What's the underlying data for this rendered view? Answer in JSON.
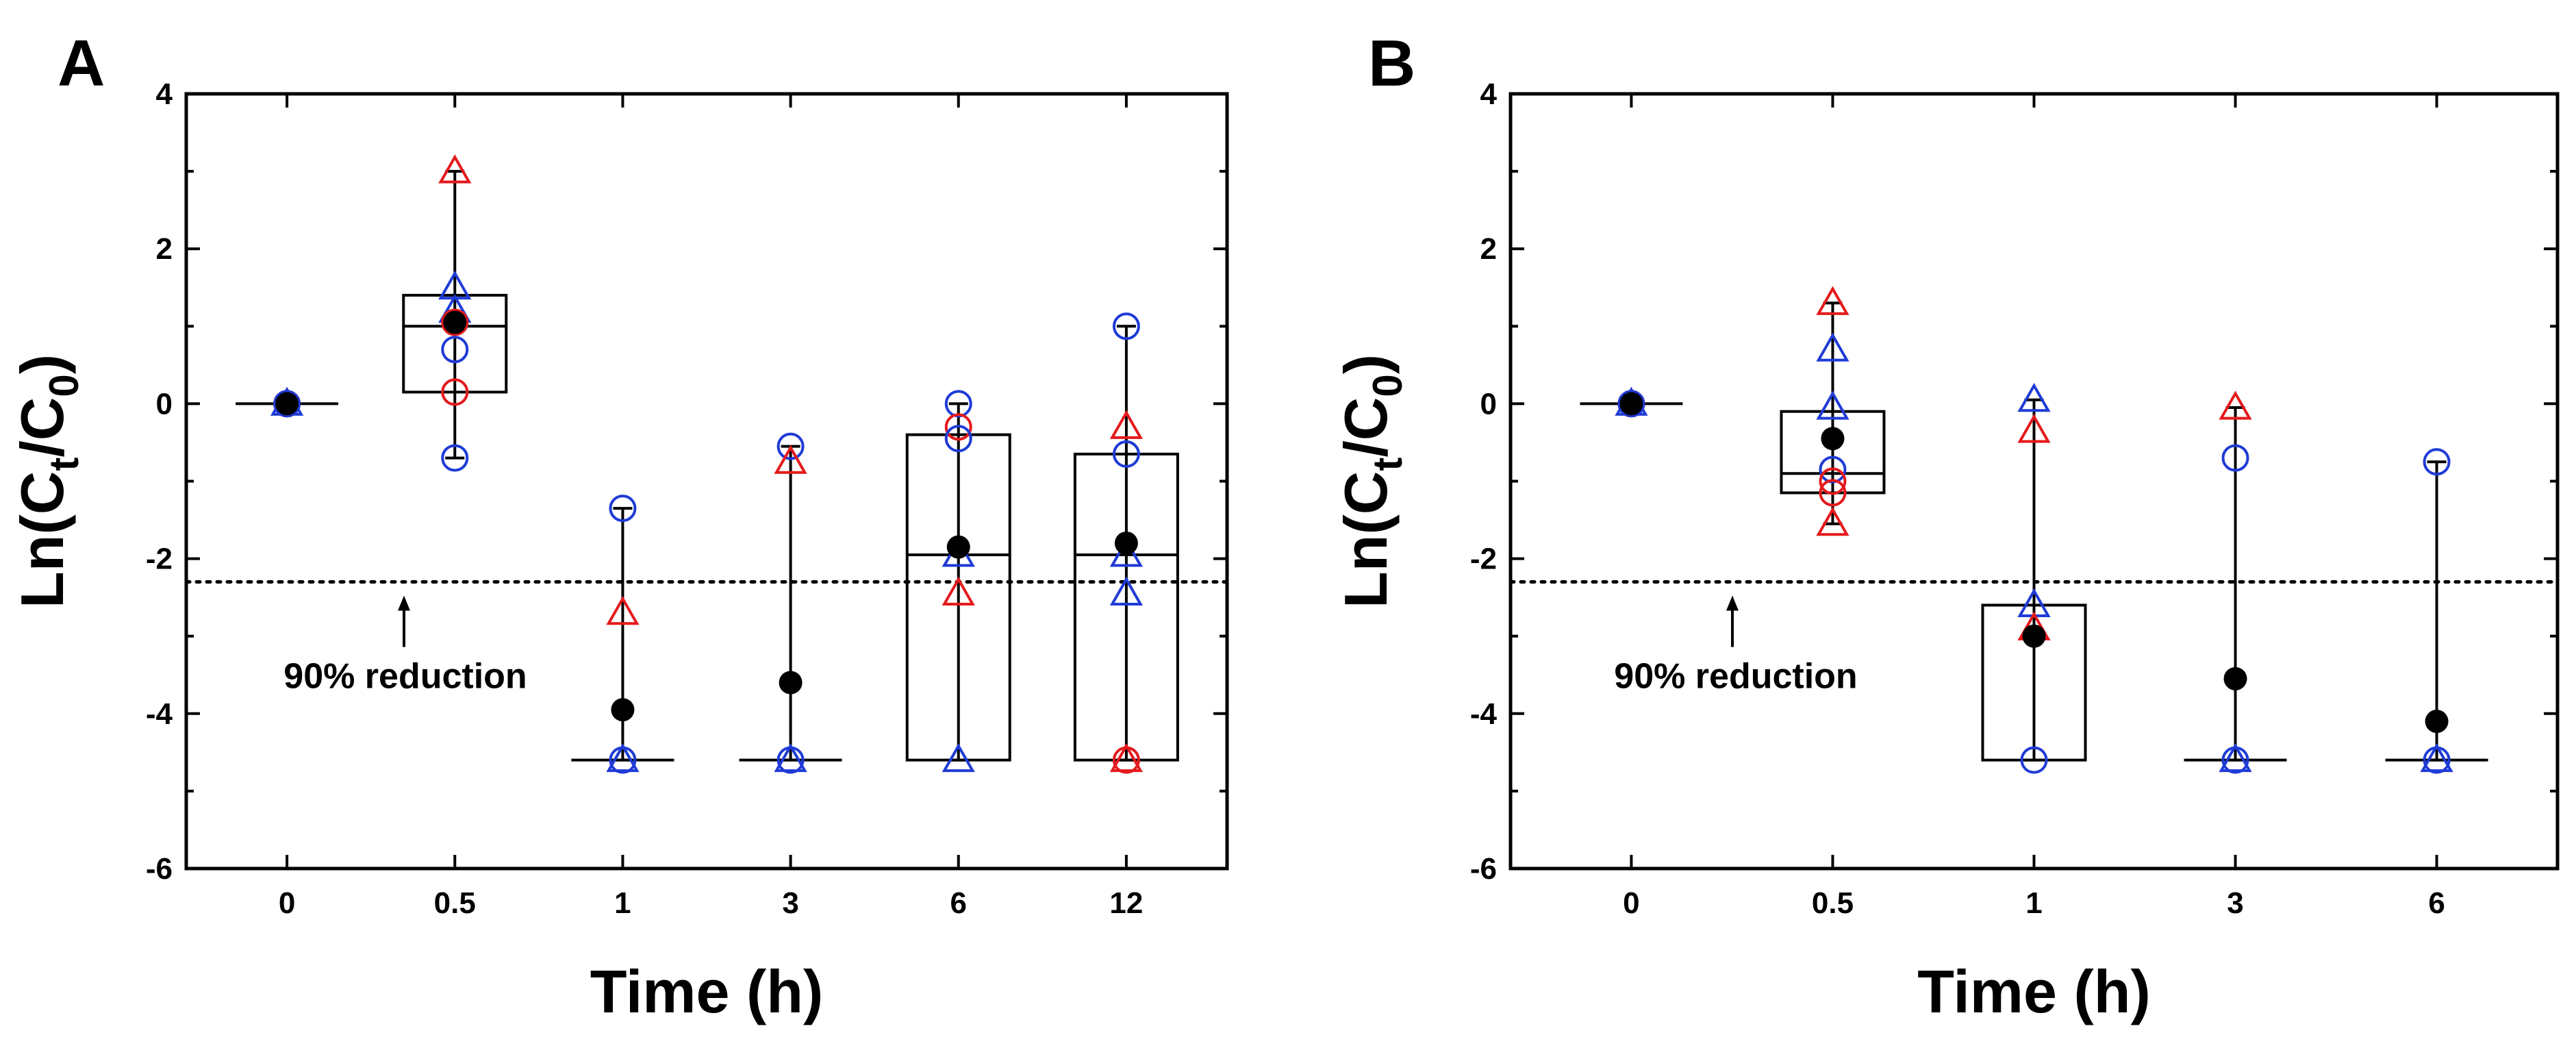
{
  "colors": {
    "axis": "#000000",
    "mean": "#000000",
    "series_red": "#e41a1c",
    "series_blue": "#1f3bd6",
    "box": "#000000"
  },
  "chart_data": [
    {
      "panel_label": "A",
      "type": "box",
      "xlabel": "Time (h)",
      "ylabel": "Ln(Ct/C0)",
      "ylabel_parts": {
        "base": "Ln(C",
        "sub1": "t",
        "mid": "/C",
        "sub2": "0",
        "end": ")"
      },
      "ylim": [
        -6,
        4
      ],
      "yticks": [
        "-6",
        "-4",
        "-2",
        "0",
        "2",
        "4"
      ],
      "categories": [
        "0",
        "0.5",
        "1",
        "3",
        "6",
        "12"
      ],
      "threshold": {
        "value": -2.3,
        "label": "90% reduction",
        "style": "dotted"
      },
      "boxes": [
        {
          "category": "0",
          "min": 0,
          "q1": 0,
          "median": 0,
          "q3": 0,
          "max": 0,
          "mean": 0
        },
        {
          "category": "0.5",
          "min": -0.7,
          "q1": 0.15,
          "median": 1.0,
          "q3": 1.4,
          "max": 3.0,
          "mean": 1.05
        },
        {
          "category": "1",
          "min": -4.6,
          "q1": -4.6,
          "median": -4.6,
          "q3": -4.6,
          "max": -1.35,
          "mean": -3.95
        },
        {
          "category": "3",
          "min": -4.6,
          "q1": -4.6,
          "median": -4.6,
          "q3": -4.6,
          "max": -0.55,
          "mean": -3.6
        },
        {
          "category": "6",
          "min": -4.6,
          "q1": -4.6,
          "median": -1.95,
          "q3": -0.4,
          "max": 0.0,
          "mean": -1.85
        },
        {
          "category": "12",
          "min": -4.6,
          "q1": -4.6,
          "median": -1.95,
          "q3": -0.65,
          "max": 1.0,
          "mean": -1.8
        }
      ],
      "points": [
        {
          "category": "0",
          "value": 0,
          "series": "red",
          "marker": "circle"
        },
        {
          "category": "0",
          "value": 0,
          "series": "blue",
          "marker": "circle"
        },
        {
          "category": "0",
          "value": 0,
          "series": "blue",
          "marker": "triangle"
        },
        {
          "category": "0.5",
          "value": 3.0,
          "series": "red",
          "marker": "triangle"
        },
        {
          "category": "0.5",
          "value": 1.5,
          "series": "blue",
          "marker": "triangle"
        },
        {
          "category": "0.5",
          "value": 1.2,
          "series": "blue",
          "marker": "triangle"
        },
        {
          "category": "0.5",
          "value": 1.05,
          "series": "red",
          "marker": "circle"
        },
        {
          "category": "0.5",
          "value": 0.7,
          "series": "blue",
          "marker": "circle"
        },
        {
          "category": "0.5",
          "value": 0.15,
          "series": "red",
          "marker": "circle"
        },
        {
          "category": "0.5",
          "value": -0.7,
          "series": "blue",
          "marker": "circle"
        },
        {
          "category": "1",
          "value": -1.35,
          "series": "blue",
          "marker": "circle"
        },
        {
          "category": "1",
          "value": -2.7,
          "series": "red",
          "marker": "triangle"
        },
        {
          "category": "1",
          "value": -4.6,
          "series": "blue",
          "marker": "circle"
        },
        {
          "category": "1",
          "value": -4.6,
          "series": "blue",
          "marker": "triangle"
        },
        {
          "category": "3",
          "value": -0.55,
          "series": "blue",
          "marker": "circle"
        },
        {
          "category": "3",
          "value": -0.75,
          "series": "red",
          "marker": "triangle"
        },
        {
          "category": "3",
          "value": -4.6,
          "series": "blue",
          "marker": "circle"
        },
        {
          "category": "3",
          "value": -4.6,
          "series": "blue",
          "marker": "triangle"
        },
        {
          "category": "6",
          "value": 0.0,
          "series": "blue",
          "marker": "circle"
        },
        {
          "category": "6",
          "value": -0.3,
          "series": "red",
          "marker": "circle"
        },
        {
          "category": "6",
          "value": -0.45,
          "series": "blue",
          "marker": "circle"
        },
        {
          "category": "6",
          "value": -1.95,
          "series": "blue",
          "marker": "triangle"
        },
        {
          "category": "6",
          "value": -2.45,
          "series": "red",
          "marker": "triangle"
        },
        {
          "category": "6",
          "value": -4.6,
          "series": "blue",
          "marker": "triangle"
        },
        {
          "category": "12",
          "value": 1.0,
          "series": "blue",
          "marker": "circle"
        },
        {
          "category": "12",
          "value": -0.3,
          "series": "red",
          "marker": "triangle"
        },
        {
          "category": "12",
          "value": -0.65,
          "series": "blue",
          "marker": "circle"
        },
        {
          "category": "12",
          "value": -1.95,
          "series": "blue",
          "marker": "triangle"
        },
        {
          "category": "12",
          "value": -2.45,
          "series": "blue",
          "marker": "triangle"
        },
        {
          "category": "12",
          "value": -4.6,
          "series": "red",
          "marker": "triangle"
        },
        {
          "category": "12",
          "value": -4.6,
          "series": "red",
          "marker": "circle"
        }
      ]
    },
    {
      "panel_label": "B",
      "type": "box",
      "xlabel": "Time (h)",
      "ylabel": "Ln(Ct/C0)",
      "ylabel_parts": {
        "base": "Ln(C",
        "sub1": "t",
        "mid": "/C",
        "sub2": "0",
        "end": ")"
      },
      "ylim": [
        -6,
        4
      ],
      "yticks": [
        "-6",
        "-4",
        "-2",
        "0",
        "2",
        "4"
      ],
      "categories": [
        "0",
        "0.5",
        "1",
        "3",
        "6"
      ],
      "threshold": {
        "value": -2.3,
        "label": "90% reduction",
        "style": "dotted"
      },
      "boxes": [
        {
          "category": "0",
          "min": 0,
          "q1": 0,
          "median": 0,
          "q3": 0,
          "max": 0,
          "mean": 0
        },
        {
          "category": "0.5",
          "min": -1.55,
          "q1": -1.15,
          "median": -0.9,
          "q3": -0.1,
          "max": 1.3,
          "mean": -0.45
        },
        {
          "category": "1",
          "min": -4.6,
          "q1": -4.6,
          "median": -2.6,
          "q3": -2.6,
          "max": 0.05,
          "mean": -3.0
        },
        {
          "category": "3",
          "min": -4.6,
          "q1": -4.6,
          "median": -4.6,
          "q3": -4.6,
          "max": -0.05,
          "mean": -3.55
        },
        {
          "category": "6",
          "min": -4.6,
          "q1": -4.6,
          "median": -4.6,
          "q3": -4.6,
          "max": -0.75,
          "mean": -4.1
        }
      ],
      "points": [
        {
          "category": "0",
          "value": 0,
          "series": "red",
          "marker": "circle"
        },
        {
          "category": "0",
          "value": 0,
          "series": "blue",
          "marker": "circle"
        },
        {
          "category": "0",
          "value": 0,
          "series": "blue",
          "marker": "triangle"
        },
        {
          "category": "0.5",
          "value": 1.3,
          "series": "red",
          "marker": "triangle"
        },
        {
          "category": "0.5",
          "value": 0.7,
          "series": "blue",
          "marker": "triangle"
        },
        {
          "category": "0.5",
          "value": -0.05,
          "series": "blue",
          "marker": "triangle"
        },
        {
          "category": "0.5",
          "value": -0.85,
          "series": "blue",
          "marker": "circle"
        },
        {
          "category": "0.5",
          "value": -1.0,
          "series": "red",
          "marker": "circle"
        },
        {
          "category": "0.5",
          "value": -1.15,
          "series": "red",
          "marker": "circle"
        },
        {
          "category": "0.5",
          "value": -1.55,
          "series": "red",
          "marker": "triangle"
        },
        {
          "category": "1",
          "value": 0.05,
          "series": "blue",
          "marker": "triangle"
        },
        {
          "category": "1",
          "value": -0.35,
          "series": "red",
          "marker": "triangle"
        },
        {
          "category": "1",
          "value": -2.6,
          "series": "blue",
          "marker": "triangle"
        },
        {
          "category": "1",
          "value": -2.9,
          "series": "red",
          "marker": "triangle"
        },
        {
          "category": "1",
          "value": -4.6,
          "series": "blue",
          "marker": "circle"
        },
        {
          "category": "3",
          "value": -0.05,
          "series": "red",
          "marker": "triangle"
        },
        {
          "category": "3",
          "value": -0.7,
          "series": "blue",
          "marker": "circle"
        },
        {
          "category": "3",
          "value": -4.6,
          "series": "blue",
          "marker": "circle"
        },
        {
          "category": "3",
          "value": -4.6,
          "series": "blue",
          "marker": "triangle"
        },
        {
          "category": "6",
          "value": -0.75,
          "series": "blue",
          "marker": "circle"
        },
        {
          "category": "6",
          "value": -4.6,
          "series": "blue",
          "marker": "circle"
        },
        {
          "category": "6",
          "value": -4.6,
          "series": "blue",
          "marker": "triangle"
        }
      ]
    }
  ]
}
